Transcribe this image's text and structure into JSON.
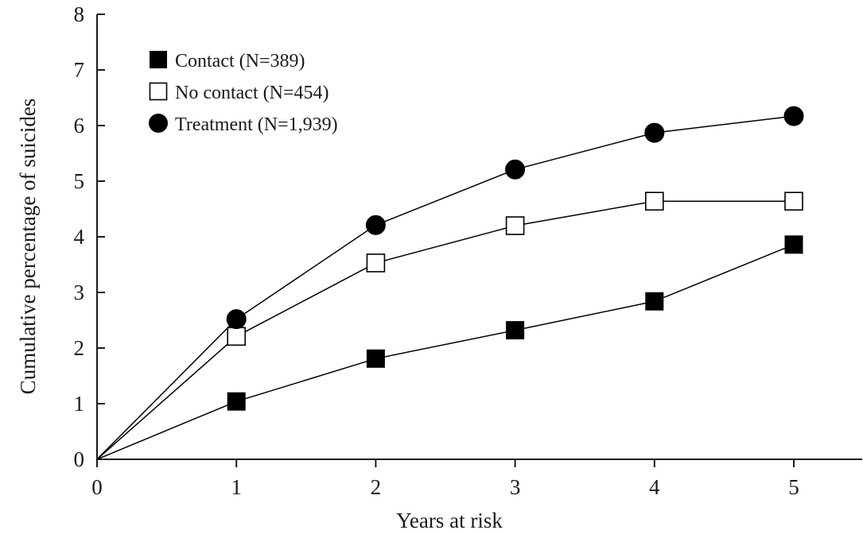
{
  "chart_data": {
    "type": "line",
    "title": "",
    "xlabel": "Years at risk",
    "ylabel": "Cumulative percentage of suicides",
    "x": [
      0,
      1,
      2,
      3,
      4,
      5
    ],
    "x_ticks": [
      "0",
      "1",
      "2",
      "3",
      "4",
      "5"
    ],
    "y_ticks": [
      "0",
      "1",
      "2",
      "3",
      "4",
      "5",
      "6",
      "7",
      "8"
    ],
    "xlim": [
      0,
      5.5
    ],
    "ylim": [
      0,
      8
    ],
    "grid": false,
    "legend_position": "top-left",
    "series": [
      {
        "name": "Contact (N=389)",
        "marker": "filled-square",
        "color": "#000000",
        "values": [
          0,
          1.04,
          1.81,
          2.32,
          2.84,
          3.86
        ]
      },
      {
        "name": "No contact (N=454)",
        "marker": "open-square",
        "color": "#000000",
        "values": [
          0,
          2.21,
          3.53,
          4.2,
          4.64,
          4.64
        ]
      },
      {
        "name": "Treatment (N=1,939)",
        "marker": "filled-circle",
        "color": "#000000",
        "values": [
          0,
          2.52,
          4.21,
          5.21,
          5.87,
          6.17
        ]
      }
    ]
  }
}
